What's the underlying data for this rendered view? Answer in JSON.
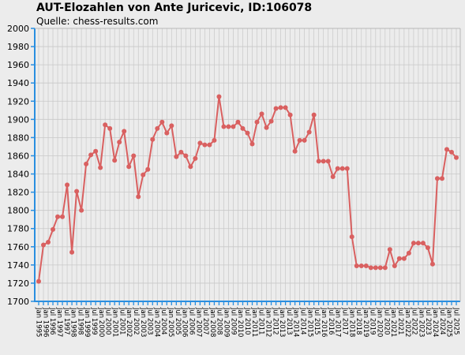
{
  "chart_data": {
    "type": "line",
    "title": "AUT-Elozahlen von Ante Juricevic, ID:106078",
    "subtitle": "Quelle: chess-results.com",
    "xlabel": "",
    "ylabel": "",
    "ylim": [
      1700,
      2000
    ],
    "yticks": [
      1700,
      1720,
      1740,
      1760,
      1780,
      1800,
      1820,
      1840,
      1860,
      1880,
      1900,
      1920,
      1940,
      1960,
      1980,
      2000
    ],
    "grid": true,
    "legend": "none",
    "x_tick_labels": [
      "Jan 1995",
      "Jan 1996",
      "Jul 1996",
      "Jan 1997",
      "Jul 1997",
      "Jan 1998",
      "Jul 1998",
      "Jan 1999",
      "Jul 1999",
      "Jan 2000",
      "Jul 2000",
      "Jan 2001",
      "Jul 2001",
      "Jan 2002",
      "Jul 2002",
      "Jan 2003",
      "Jul 2003",
      "Jan 2004",
      "Jul 2004",
      "Jan 2005",
      "Jul 2005",
      "Jan 2006",
      "Jul 2006",
      "Jan 2007",
      "Jul 2007",
      "Jan 2008",
      "Jul 2008",
      "Jan 2009",
      "Jul 2009",
      "Jan 2010",
      "Jul 2010",
      "Jan 2011",
      "Jul 2011",
      "Jan 2012",
      "Jul 2012",
      "Jan 2013",
      "Jul 2013",
      "Jan 2014",
      "Jul 2014",
      "Jan 2015",
      "Jul 2015",
      "Jan 2016",
      "Jul 2016",
      "Jan 2017",
      "Jul 2017",
      "Jan 2018",
      "Jul 2018",
      "Jan 2019",
      "Jul 2019",
      "Jan 2020",
      "Jul 2020",
      "Jan 2021",
      "Jul 2021",
      "Jan 2022",
      "Jul 2022",
      "Jan 2023",
      "Jul 2023",
      "Jan 2024",
      "Jul 2024",
      "Jan 2025",
      "Jul 2025"
    ],
    "series": [
      {
        "name": "",
        "color": "#d96060",
        "values": [
          1722,
          1762,
          1765,
          1779,
          1793,
          1793,
          1828,
          1754,
          1821,
          1800,
          1851,
          1861,
          1865,
          1847,
          1894,
          1890,
          1855,
          1875,
          1887,
          1848,
          1860,
          1815,
          1839,
          1845,
          1878,
          1890,
          1897,
          1885,
          1893,
          1859,
          1864,
          1860,
          1848,
          1857,
          1874,
          1872,
          1872,
          1877,
          1925,
          1892,
          1892,
          1892,
          1897,
          1890,
          1885,
          1873,
          1897,
          1906,
          1891,
          1898,
          1912,
          1913,
          1913,
          1905,
          1865,
          1877,
          1877,
          1886,
          1905,
          1854,
          1854,
          1854,
          1837,
          1846,
          1846,
          1846,
          1771,
          1739,
          1739,
          1739,
          1737,
          1737,
          1737,
          1737,
          1757,
          1739,
          1747,
          1747,
          1753,
          1764,
          1764,
          1764,
          1759,
          1741,
          1835,
          1835,
          1867,
          1864,
          1858
        ]
      }
    ]
  },
  "colors": {
    "background": "#ececec",
    "plot_background": "#ececec",
    "grid": "#c8c8c8",
    "axis": "#2a8fe0",
    "line": "#d96060"
  }
}
